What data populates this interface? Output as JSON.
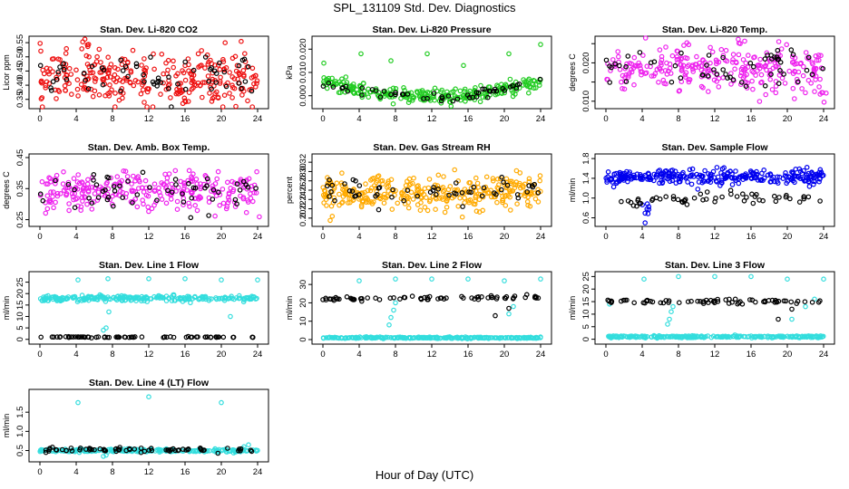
{
  "page": {
    "title": "SPL_131109  Std. Dev. Diagnostics",
    "xlabel": "Hour of Day (UTC)"
  },
  "colors": {
    "black": "#000000",
    "red": "#ee1111",
    "green": "#22cc22",
    "magenta": "#ee22ee",
    "orange": "#ffaa00",
    "blue": "#0000ee",
    "cyan": "#33dddd"
  },
  "chart_data": [
    {
      "type": "scatter",
      "title": "Stan. Dev. Li-820 CO2",
      "ylabel": "Licor ppm",
      "xlim": [
        0,
        24
      ],
      "ylim": [
        0.33,
        0.56
      ],
      "xticks": [
        0,
        4,
        8,
        12,
        16,
        20,
        24
      ],
      "yticks": [
        0.35,
        0.4,
        0.45,
        0.5,
        0.55
      ],
      "yticklabels": [
        "0.35",
        "0.40",
        "0.45",
        "0.50",
        "0.55"
      ],
      "series": [
        {
          "color": "#ee1111",
          "bands": [
            [
              0,
              0.425,
              0.045,
              300
            ],
            [
              4.5,
              0.54,
              0.015,
              6
            ],
            [
              15.5,
              0.34,
              0.005,
              3
            ]
          ]
        },
        {
          "color": "#000000",
          "bands": [
            [
              0,
              0.43,
              0.04,
              60
            ]
          ]
        }
      ]
    },
    {
      "type": "scatter",
      "title": "Stan. Dev. Li-820 Pressure",
      "ylabel": "kPa",
      "xlim": [
        0,
        24
      ],
      "ylim": [
        -0.004,
        0.024
      ],
      "xticks": [
        0,
        4,
        8,
        12,
        16,
        20,
        24
      ],
      "yticks": [
        0.0,
        0.01,
        0.02
      ],
      "yticklabels": [
        "0.000",
        "0.010",
        "0.020"
      ],
      "series": [
        {
          "color": "#22cc22",
          "curve": [
            [
              0,
              0.006
            ],
            [
              4,
              0.002
            ],
            [
              8,
              0.0
            ],
            [
              12,
              -0.0005
            ],
            [
              16,
              0.0
            ],
            [
              20,
              0.003
            ],
            [
              24,
              0.006
            ]
          ],
          "jitter": 0.0015,
          "n": 280,
          "extra": [
            [
              0.1,
              0.014
            ],
            [
              4.2,
              0.018
            ],
            [
              7.5,
              0.015
            ],
            [
              11.5,
              0.018
            ],
            [
              15.5,
              0.013
            ],
            [
              20.5,
              0.018
            ],
            [
              24,
              0.022
            ]
          ]
        },
        {
          "color": "#000000",
          "curve": [
            [
              0,
              0.006
            ],
            [
              4,
              0.002
            ],
            [
              8,
              0.0
            ],
            [
              12,
              -0.0005
            ],
            [
              16,
              0.0
            ],
            [
              20,
              0.003
            ],
            [
              24,
              0.006
            ]
          ],
          "jitter": 0.001,
          "n": 50
        }
      ]
    },
    {
      "type": "scatter",
      "title": "Stan. Dev. Li-820 Temp.",
      "ylabel": "degrees C",
      "xlim": [
        0,
        24
      ],
      "ylim": [
        0.009,
        0.026
      ],
      "xticks": [
        0,
        4,
        8,
        12,
        16,
        20,
        24
      ],
      "yticks": [
        0.01,
        0.015,
        0.02,
        0.025
      ],
      "yticklabels": [
        "0.010",
        "",
        "0.020",
        ""
      ],
      "series": [
        {
          "color": "#ee22ee",
          "bands": [
            [
              0,
              0.0185,
              0.003,
              280
            ],
            [
              23.5,
              0.011,
              0.001,
              4
            ]
          ]
        },
        {
          "color": "#000000",
          "bands": [
            [
              0,
              0.018,
              0.003,
              55
            ]
          ]
        }
      ]
    },
    {
      "type": "scatter",
      "title": "Stan. Dev. Amb. Box Temp.",
      "ylabel": "degrees C",
      "xlim": [
        0,
        24
      ],
      "ylim": [
        0.24,
        0.45
      ],
      "xticks": [
        0,
        4,
        8,
        12,
        16,
        20,
        24
      ],
      "yticks": [
        0.25,
        0.35,
        0.45
      ],
      "yticklabels": [
        "0.25",
        "0.35",
        "0.45"
      ],
      "series": [
        {
          "color": "#ee22ee",
          "bands": [
            [
              0,
              0.34,
              0.03,
              280
            ],
            [
              23.5,
              0.26,
              0.005,
              1
            ]
          ]
        },
        {
          "color": "#000000",
          "bands": [
            [
              0,
              0.335,
              0.03,
              55
            ]
          ]
        }
      ]
    },
    {
      "type": "scatter",
      "title": "Stan. Dev. Gas Stream RH",
      "ylabel": "percent",
      "xlim": [
        0,
        24
      ],
      "ylim": [
        0.19,
        0.33
      ],
      "xticks": [
        0,
        4,
        8,
        12,
        16,
        20,
        24
      ],
      "yticks": [
        0.2,
        0.22,
        0.24,
        0.26,
        0.28,
        0.3,
        0.32
      ],
      "yticklabels": [
        "0.20",
        "0.22",
        "0.24",
        "0.26",
        "0.28",
        "0.30",
        "0.32"
      ],
      "series": [
        {
          "color": "#ffaa00",
          "bands": [
            [
              0,
              0.255,
              0.018,
              320
            ]
          ]
        },
        {
          "color": "#000000",
          "bands": [
            [
              0,
              0.255,
              0.015,
              55
            ]
          ]
        }
      ]
    },
    {
      "type": "scatter",
      "title": "Stan. Dev. Sample Flow",
      "ylabel": "ml/min",
      "xlim": [
        0,
        24
      ],
      "ylim": [
        0.5,
        1.82
      ],
      "xticks": [
        0,
        4,
        8,
        12,
        16,
        20,
        24
      ],
      "yticks": [
        0.6,
        1.0,
        1.4,
        1.8
      ],
      "yticklabels": [
        "0.6",
        "1.0",
        "1.4",
        "1.8"
      ],
      "series": [
        {
          "color": "#0000ee",
          "bands": [
            [
              0,
              1.42,
              0.08,
              300
            ],
            [
              4,
              0.8,
              0.15,
              8
            ]
          ]
        },
        {
          "color": "#000000",
          "curve": [
            [
              0,
              0.9
            ],
            [
              4,
              0.9
            ],
            [
              6,
              0.95
            ],
            [
              12,
              1.0
            ],
            [
              18,
              1.0
            ],
            [
              24,
              0.95
            ]
          ],
          "jitter": 0.05,
          "n": 55
        }
      ]
    },
    {
      "type": "scatter",
      "title": "Stan. Dev. Line 1 Flow",
      "ylabel": "ml/min",
      "xlim": [
        0,
        24
      ],
      "ylim": [
        -0.5,
        28
      ],
      "xticks": [
        0,
        4,
        8,
        12,
        16,
        20,
        24
      ],
      "yticks": [
        0,
        5,
        10,
        15,
        20,
        25
      ],
      "yticklabels": [
        "0",
        "5",
        "10",
        "15",
        "20",
        "25"
      ],
      "series": [
        {
          "color": "#33dddd",
          "curve": [
            [
              0,
              18
            ],
            [
              24,
              18
            ]
          ],
          "jitter": 0.6,
          "n": 260,
          "extra": [
            [
              4.2,
              26
            ],
            [
              7.5,
              26.5
            ],
            [
              12,
              26.5
            ],
            [
              16,
              26.5
            ],
            [
              20,
              26
            ],
            [
              24,
              26
            ],
            [
              7,
              4
            ],
            [
              7.3,
              5
            ],
            [
              7.6,
              12
            ],
            [
              21,
              10
            ],
            [
              0.5,
              17.5
            ]
          ]
        },
        {
          "color": "#000000",
          "curve": [
            [
              0,
              1
            ],
            [
              24,
              1
            ]
          ],
          "jitter": 0.1,
          "n": 70
        }
      ]
    },
    {
      "type": "scatter",
      "title": "Stan. Dev. Line 2 Flow",
      "ylabel": "ml/min",
      "xlim": [
        0,
        24
      ],
      "ylim": [
        -0.5,
        35
      ],
      "xticks": [
        0,
        4,
        8,
        12,
        16,
        20,
        24
      ],
      "yticks": [
        0,
        10,
        20,
        30
      ],
      "yticklabels": [
        "0",
        "10",
        "20",
        "30"
      ],
      "series": [
        {
          "color": "#33dddd",
          "curve": [
            [
              0,
              1
            ],
            [
              24,
              1
            ]
          ],
          "jitter": 0.2,
          "n": 260,
          "extra": [
            [
              4,
              32
            ],
            [
              8,
              33
            ],
            [
              12,
              33
            ],
            [
              16,
              33
            ],
            [
              20,
              32
            ],
            [
              24,
              33
            ],
            [
              7.3,
              8
            ],
            [
              7.5,
              12
            ],
            [
              7.8,
              16
            ],
            [
              8,
              20
            ],
            [
              20.5,
              14
            ],
            [
              21,
              18
            ]
          ]
        },
        {
          "color": "#000000",
          "curve": [
            [
              0,
              22
            ],
            [
              24,
              23
            ]
          ],
          "jitter": 0.6,
          "n": 70,
          "extra": [
            [
              19,
              13
            ],
            [
              20.5,
              17
            ]
          ]
        }
      ]
    },
    {
      "type": "scatter",
      "title": "Stan. Dev. Line 3 Flow",
      "ylabel": "ml/min",
      "xlim": [
        0,
        24
      ],
      "ylim": [
        -0.5,
        25.5
      ],
      "xticks": [
        0,
        4,
        8,
        12,
        16,
        20,
        24
      ],
      "yticks": [
        0,
        5,
        10,
        15,
        20,
        25
      ],
      "yticklabels": [
        "0",
        "5",
        "10",
        "15",
        "20",
        "25"
      ],
      "series": [
        {
          "color": "#33dddd",
          "curve": [
            [
              0,
              1
            ],
            [
              24,
              1
            ]
          ],
          "jitter": 0.2,
          "n": 260,
          "extra": [
            [
              4.2,
              24
            ],
            [
              8,
              25
            ],
            [
              12,
              25
            ],
            [
              16,
              25
            ],
            [
              20,
              24
            ],
            [
              24,
              24
            ],
            [
              6.8,
              6
            ],
            [
              7,
              8
            ],
            [
              7.2,
              11
            ],
            [
              7.4,
              13
            ],
            [
              20.5,
              8
            ],
            [
              22,
              13
            ],
            [
              23,
              16
            ],
            [
              0.4,
              14
            ]
          ]
        },
        {
          "color": "#000000",
          "curve": [
            [
              0,
              15
            ],
            [
              24,
              15
            ]
          ],
          "jitter": 0.4,
          "n": 70,
          "extra": [
            [
              19,
              8
            ],
            [
              20.5,
              12
            ]
          ]
        }
      ]
    },
    {
      "type": "scatter",
      "title": "Stan. Dev. Line 4 (LT) Flow",
      "ylabel": "ml/min",
      "xlim": [
        0,
        24
      ],
      "ylim": [
        0.3,
        2.0
      ],
      "xticks": [
        0,
        4,
        8,
        12,
        16,
        20,
        24
      ],
      "yticks": [
        0.5,
        1.0,
        1.5
      ],
      "yticklabels": [
        "0.5",
        "1.0",
        "1.5"
      ],
      "series": [
        {
          "color": "#33dddd",
          "curve": [
            [
              0,
              0.5
            ],
            [
              24,
              0.5
            ]
          ],
          "jitter": 0.02,
          "n": 260,
          "extra": [
            [
              4.2,
              1.75
            ],
            [
              12,
              1.9
            ],
            [
              20,
              1.75
            ],
            [
              7,
              0.35
            ],
            [
              7.3,
              0.38
            ],
            [
              22.5,
              0.6
            ],
            [
              23,
              0.65
            ]
          ]
        },
        {
          "color": "#000000",
          "curve": [
            [
              0,
              0.52
            ],
            [
              24,
              0.52
            ]
          ],
          "jitter": 0.03,
          "n": 70
        }
      ]
    }
  ]
}
